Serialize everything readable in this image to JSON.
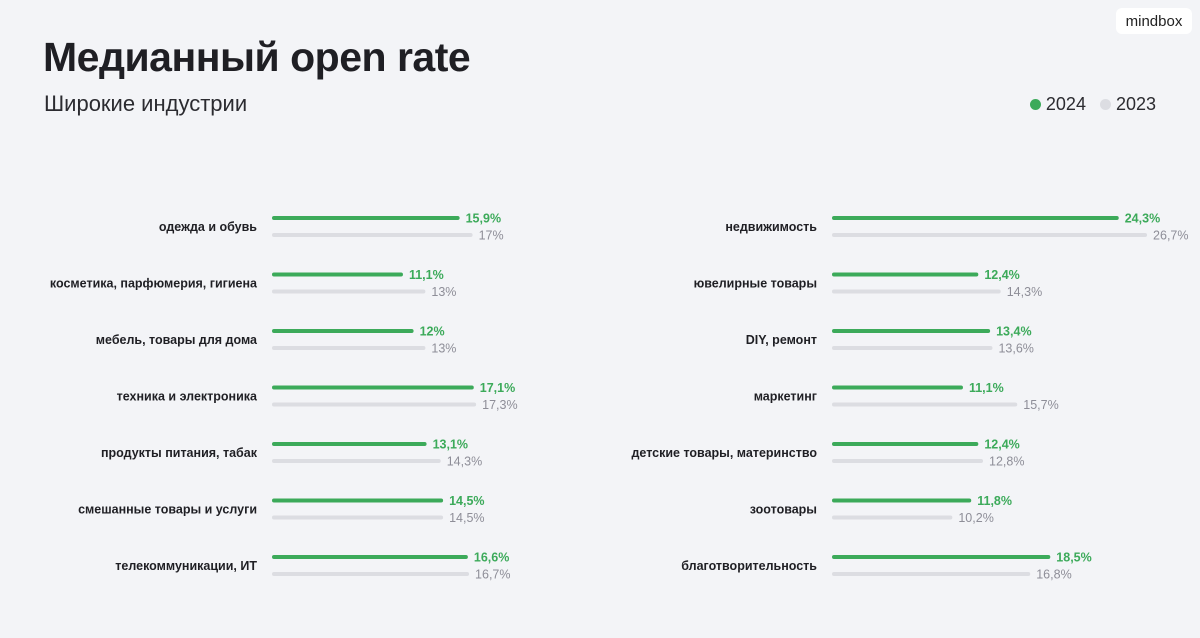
{
  "logo": "mindbox",
  "colors": {
    "y2024": "#3caa5a",
    "y2023": "#dcdde2",
    "label2023": "#8e8e98"
  },
  "chart_data": {
    "type": "bar",
    "title": "Медианный open rate",
    "subtitle": "Широкие индустрии",
    "legend": [
      "2024",
      "2023"
    ],
    "legend_position": "top-right",
    "unit_suffix": "%",
    "panels": [
      {
        "categories": [
          "одежда и обувь",
          "косметика, парфюмерия, гигиена",
          "мебель, товары для дома",
          "техника и электроника",
          "продукты питания, табак",
          "смешанные товары и услуги",
          "телекоммуникации, ИТ"
        ],
        "series": [
          {
            "name": "2024",
            "values": [
              15.9,
              11.1,
              12,
              17.1,
              13.1,
              14.5,
              16.6
            ],
            "labels": [
              "15,9%",
              "11,1%",
              "12%",
              "17,1%",
              "13,1%",
              "14,5%",
              "16,6%"
            ]
          },
          {
            "name": "2023",
            "values": [
              17,
              13,
              13,
              17.3,
              14.3,
              14.5,
              16.7
            ],
            "labels": [
              "17%",
              "13%",
              "13%",
              "17,3%",
              "14,3%",
              "14,5%",
              "16,7%"
            ]
          }
        ]
      },
      {
        "categories": [
          "недвижимость",
          "ювелирные товары",
          "DIY, ремонт",
          "маркетинг",
          "детские товары, материнство",
          "зоотовары",
          "благотворительность"
        ],
        "series": [
          {
            "name": "2024",
            "values": [
              24.3,
              12.4,
              13.4,
              11.1,
              12.4,
              11.8,
              18.5
            ],
            "labels": [
              "24,3%",
              "12,4%",
              "13,4%",
              "11,1%",
              "12,4%",
              "11,8%",
              "18,5%"
            ]
          },
          {
            "name": "2023",
            "values": [
              26.7,
              14.3,
              13.6,
              15.7,
              12.8,
              10.2,
              16.8
            ],
            "labels": [
              "26,7%",
              "14,3%",
              "13,6%",
              "15,7%",
              "12,8%",
              "10,2%",
              "16,8%"
            ]
          }
        ]
      }
    ]
  }
}
